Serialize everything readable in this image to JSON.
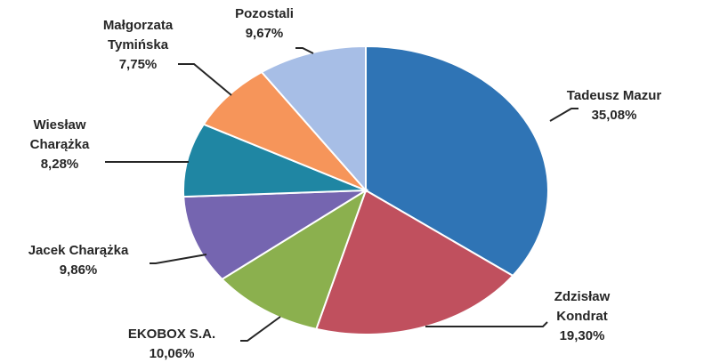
{
  "chart_data": {
    "type": "pie",
    "title": "",
    "slices": [
      {
        "name_lines": [
          "Tadeusz Mazur"
        ],
        "value_label": "35,08%",
        "value": 35.08,
        "color": "#2F74B5"
      },
      {
        "name_lines": [
          "Zdzisław",
          "Kondrat"
        ],
        "value_label": "19,30%",
        "value": 19.3,
        "color": "#C0505E"
      },
      {
        "name_lines": [
          "EKOBOX S.A."
        ],
        "value_label": "10,06%",
        "value": 10.06,
        "color": "#8BB04E"
      },
      {
        "name_lines": [
          "Jacek Charążka"
        ],
        "value_label": "9,86%",
        "value": 9.86,
        "color": "#7565B0"
      },
      {
        "name_lines": [
          "Wiesław",
          "Charążka"
        ],
        "value_label": "8,28%",
        "value": 8.28,
        "color": "#1F86A3"
      },
      {
        "name_lines": [
          "Małgorzata",
          "Tymińska"
        ],
        "value_label": "7,75%",
        "value": 7.75,
        "color": "#F6955A"
      },
      {
        "name_lines": [
          "Pozostali"
        ],
        "value_label": "9,67%",
        "value": 9.67,
        "color": "#A7BEE6"
      }
    ]
  }
}
